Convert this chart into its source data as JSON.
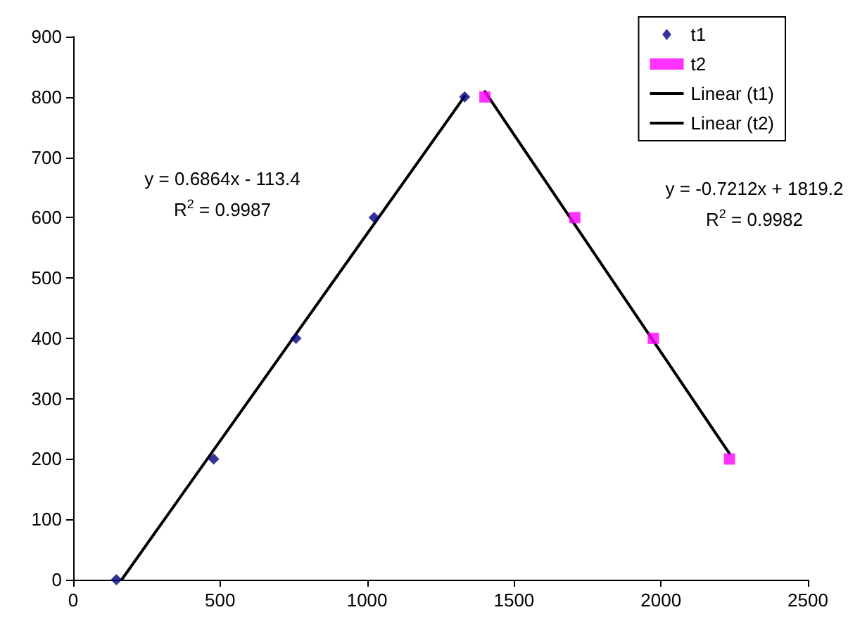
{
  "chart_data": {
    "type": "scatter",
    "series": [
      {
        "name": "t1",
        "color": "#000080",
        "marker": "diamond",
        "x": [
          147,
          478,
          758,
          1024,
          1332
        ],
        "values": [
          0,
          200,
          400,
          600,
          800
        ]
      },
      {
        "name": "t2",
        "color": "#ff00ff",
        "marker": "square",
        "x": [
          1401,
          1707,
          1974,
          2233
        ],
        "values": [
          800,
          600,
          400,
          200
        ]
      },
      {
        "name": "Linear (t1)",
        "type": "line",
        "color": "#000000",
        "marker": "none",
        "line_style": "solid",
        "x": [
          165,
          1332
        ],
        "values": [
          0,
          801
        ]
      },
      {
        "name": "Linear (t2)",
        "type": "line",
        "color": "#000000",
        "marker": "none",
        "line_style": "solid",
        "x": [
          1401,
          2233
        ],
        "values": [
          809,
          209
        ]
      }
    ],
    "xlim": [
      0,
      2500
    ],
    "xticks": [
      0,
      500,
      1000,
      1500,
      2000,
      2500
    ],
    "ylim": [
      0,
      900
    ],
    "yticks": [
      0,
      100,
      200,
      300,
      400,
      500,
      600,
      700,
      800,
      900
    ],
    "grid": false,
    "legend": "top right",
    "annotations": [
      "y = 0.6864x - 113.4",
      "R$^{2}$ = 0.9987",
      "y = -0.7212x + 1819.2",
      "R$^{2}$ = 0.9982"
    ]
  }
}
